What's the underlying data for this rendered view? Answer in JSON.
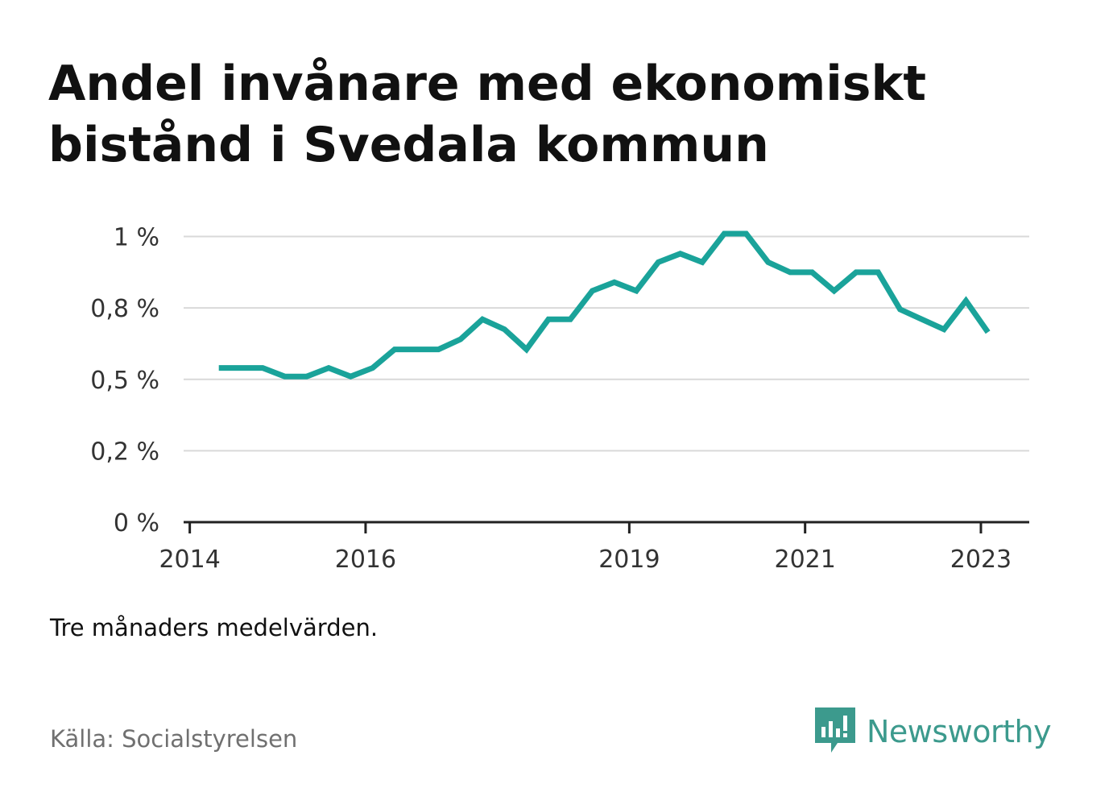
{
  "title_lines": [
    "Andel invånare med ekonomiskt",
    "bistånd i Svedala kommun"
  ],
  "note": "Tre månaders medelvärden.",
  "source": "Källa: Socialstyrelsen",
  "brand": {
    "name": "Newsworthy",
    "icon": "newsworthy-logo-icon",
    "color": "#3c9a8d"
  },
  "colors": {
    "line": "#1aa39a",
    "grid": "#d9d9d9",
    "axis": "#222222",
    "tick_text": "#333333"
  },
  "chart_data": {
    "type": "line",
    "title": "Andel invånare med ekonomiskt bistånd i Svedala kommun",
    "xlabel": "",
    "ylabel": "",
    "ylim": [
      0,
      1.01
    ],
    "xlim": [
      2013.93,
      2023.55
    ],
    "grid": true,
    "y_ticks": [
      {
        "value": 0,
        "label": "0 %"
      },
      {
        "value": 0.25,
        "label": "0,2 %"
      },
      {
        "value": 0.5,
        "label": "0,5 %"
      },
      {
        "value": 0.75,
        "label": "0,8 %"
      },
      {
        "value": 1.0,
        "label": "1 %"
      }
    ],
    "x_ticks": [
      {
        "value": 2014,
        "label": "2014"
      },
      {
        "value": 2016,
        "label": "2016"
      },
      {
        "value": 2019,
        "label": "2019"
      },
      {
        "value": 2021,
        "label": "2021"
      },
      {
        "value": 2023,
        "label": "2023"
      }
    ],
    "series": [
      {
        "x": [
          2014.33,
          2014.58,
          2014.83,
          2015.08,
          2015.33,
          2015.58,
          2015.83,
          2016.08,
          2016.33,
          2016.58,
          2016.83,
          2017.08,
          2017.33,
          2017.58,
          2017.83,
          2018.08,
          2018.33,
          2018.58,
          2018.83,
          2019.08,
          2019.33,
          2019.58,
          2019.83,
          2020.08,
          2020.33,
          2020.58,
          2020.83,
          2021.08,
          2021.33,
          2021.58,
          2021.83,
          2022.08,
          2022.33,
          2022.58,
          2022.83,
          2023.08
        ],
        "values": [
          0.54,
          0.54,
          0.54,
          0.51,
          0.51,
          0.54,
          0.51,
          0.54,
          0.605,
          0.605,
          0.605,
          0.64,
          0.71,
          0.675,
          0.605,
          0.71,
          0.71,
          0.81,
          0.84,
          0.81,
          0.91,
          0.94,
          0.91,
          1.01,
          1.01,
          0.91,
          0.875,
          0.875,
          0.81,
          0.875,
          0.875,
          0.745,
          0.71,
          0.675,
          0.775,
          0.665
        ]
      }
    ]
  }
}
